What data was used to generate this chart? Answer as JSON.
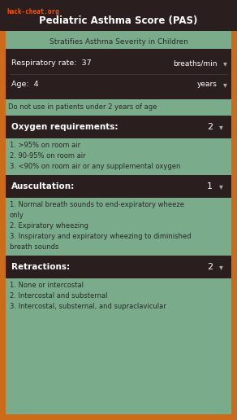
{
  "title": "Pediatric Asthma Score (PAS)",
  "subtitle": "Stratifies Asthma Severity in Children",
  "bg_color": "#7aab8a",
  "header_bg": "#2b1e1e",
  "orange_border": "#cc6b1a",
  "dark_box_bg": "#2b1e1e",
  "light_text": "#ffffff",
  "dark_text": "#2a2a2a",
  "watermark": "hack-cheat.org",
  "watermark_color": "#ff5500",
  "fields": [
    {
      "label": "Respiratory rate:  37",
      "unit": "breaths/min"
    },
    {
      "label": "Age:  4",
      "unit": "years"
    }
  ],
  "warning": "Do not use in patients under 2 years of age",
  "sections": [
    {
      "title": "Oxygen requirements:",
      "score": "2",
      "items": [
        "1. >95% on room air",
        "2. 90-95% on room air",
        "3. <90% on room air or any supplemental oxygen"
      ]
    },
    {
      "title": "Auscultation:",
      "score": "1",
      "items": [
        "1. Normal breath sounds to end-expiratory wheeze\n    only",
        "2. Expiratory wheezing",
        "3. Inspiratory and expiratory wheezing to diminished\n    breath sounds"
      ]
    },
    {
      "title": "Retractions:",
      "score": "2",
      "items": [
        "1. None or intercostal",
        "2. Intercostal and substernal",
        "3. Intercostal, substernal, and supraclavicular"
      ]
    }
  ]
}
